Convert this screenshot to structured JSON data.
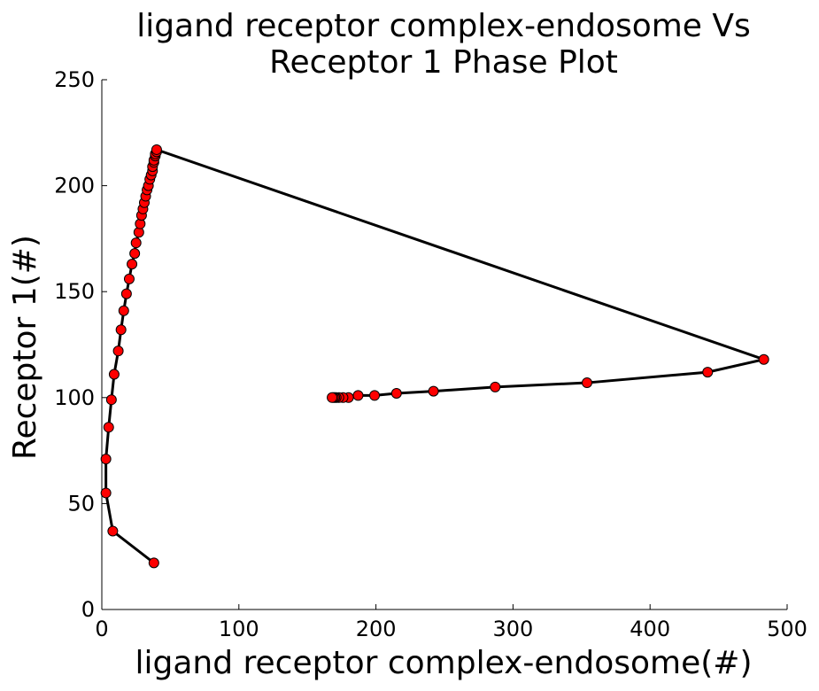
{
  "chart_data": {
    "type": "line",
    "title_lines": [
      "ligand receptor complex-endosome Vs",
      "Receptor 1 Phase Plot"
    ],
    "xlabel": "ligand receptor complex-endosome(#)",
    "ylabel": "Receptor 1(#)",
    "xlim": [
      0,
      500
    ],
    "ylim": [
      0,
      250
    ],
    "xticks": [
      0,
      100,
      200,
      300,
      400,
      500
    ],
    "yticks": [
      0,
      50,
      100,
      150,
      200,
      250
    ],
    "grid": false,
    "line_color": "#000000",
    "marker_color": "#ff0000",
    "marker_edge_color": "#000000",
    "series": [
      {
        "x": [
          38,
          8,
          3,
          3,
          5,
          7,
          9,
          12,
          14,
          16,
          18,
          20,
          22,
          24,
          25,
          27,
          28,
          29,
          30,
          31,
          32,
          33,
          34,
          35,
          36,
          37,
          37,
          38,
          38,
          39,
          39,
          40,
          40,
          483,
          442,
          354,
          287,
          242,
          215,
          199,
          187,
          180,
          176,
          173,
          171,
          170,
          169,
          168
        ],
        "y": [
          22,
          37,
          55,
          71,
          86,
          99,
          111,
          122,
          132,
          141,
          149,
          156,
          163,
          168,
          173,
          178,
          182,
          186,
          189,
          192,
          195,
          198,
          200,
          203,
          205,
          207,
          209,
          211,
          212,
          214,
          215,
          216,
          217,
          118,
          112,
          107,
          105,
          103,
          102,
          101,
          101,
          100,
          100,
          100,
          100,
          100,
          100,
          100
        ]
      }
    ]
  }
}
